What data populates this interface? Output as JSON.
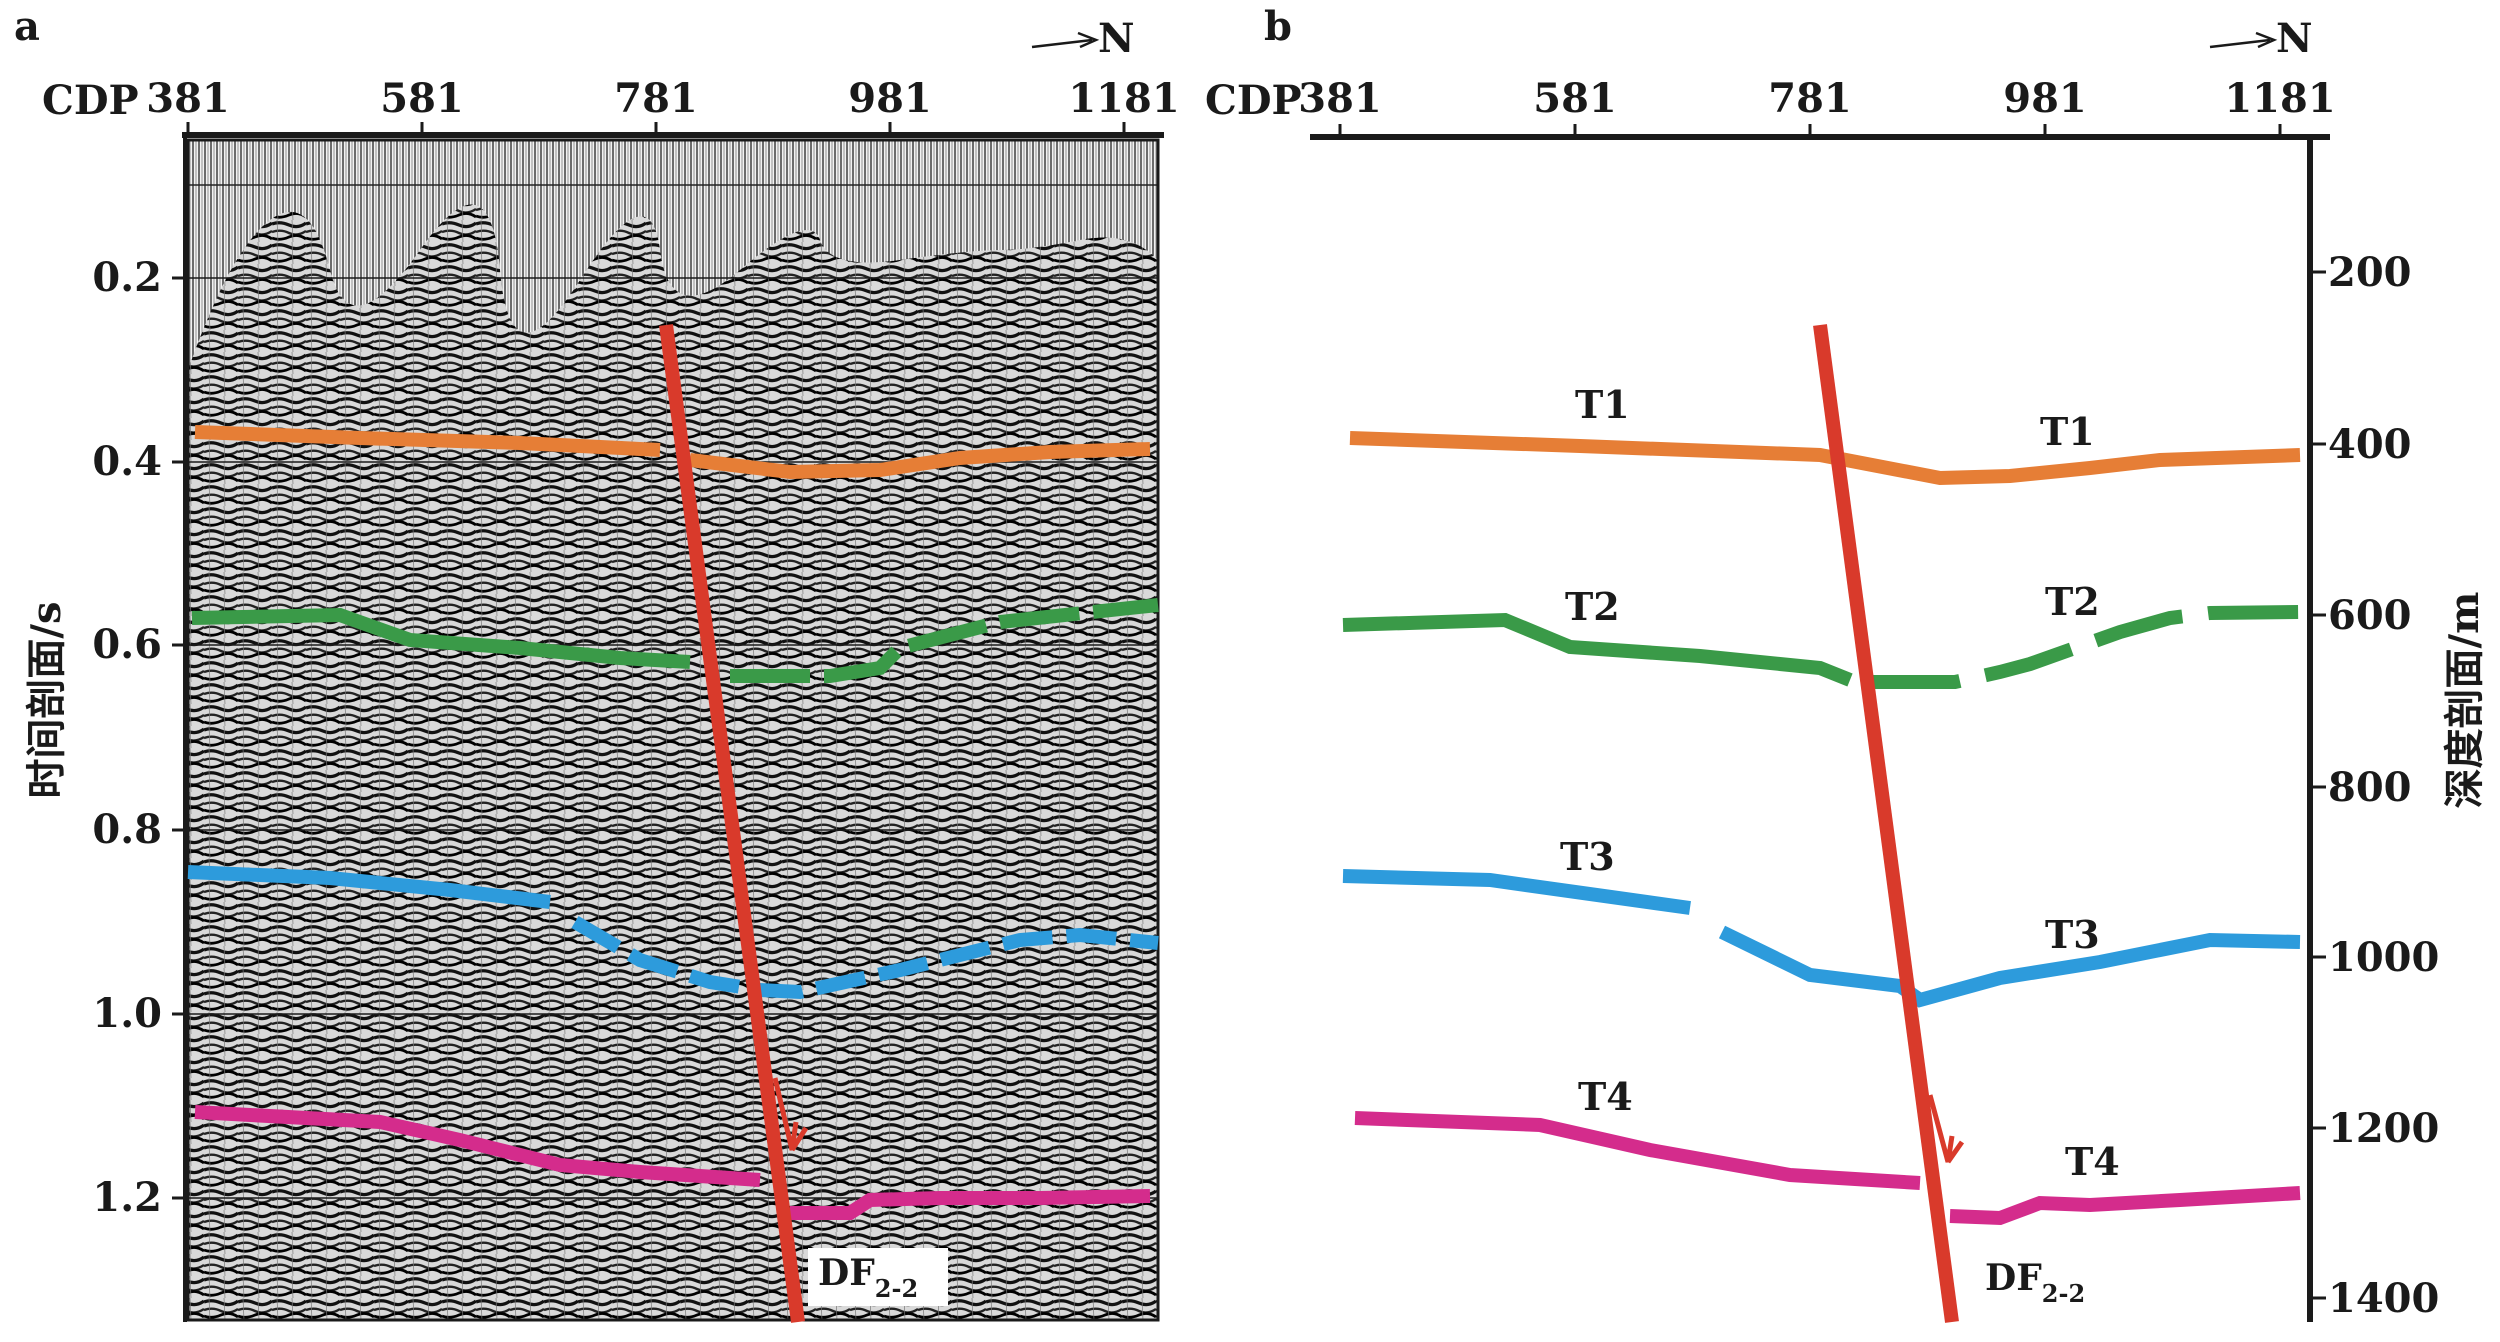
{
  "panels": {
    "a": {
      "label": "a",
      "north": "N",
      "x_axis_label": "CDP",
      "x_ticks": [
        "381",
        "581",
        "781",
        "981",
        "1181"
      ],
      "y_axis_label": "时间剖面/s",
      "y_ticks": [
        "0.2",
        "0.4",
        "0.6",
        "0.8",
        "1.0",
        "1.2"
      ],
      "fault_label": "DF",
      "fault_sub": "2-2"
    },
    "b": {
      "label": "b",
      "north": "N",
      "x_axis_label": "CDP",
      "x_ticks": [
        "381",
        "581",
        "781",
        "981",
        "1181"
      ],
      "y_axis_label": "深度剖面/m",
      "y_ticks": [
        "200",
        "400",
        "600",
        "800",
        "1000",
        "1200",
        "1400"
      ],
      "fault_label": "DF",
      "fault_sub": "2-2",
      "horizon_labels": [
        "T1",
        "T1",
        "T2",
        "T2",
        "T3",
        "T3",
        "T4",
        "T4"
      ]
    }
  },
  "horizons": [
    {
      "name": "T1",
      "color": "#E67E36"
    },
    {
      "name": "T2",
      "color": "#3A9A48"
    },
    {
      "name": "T3",
      "color": "#2D9BDC"
    },
    {
      "name": "T4",
      "color": "#D42C8C"
    }
  ],
  "fault_color": "#D93A2B"
}
